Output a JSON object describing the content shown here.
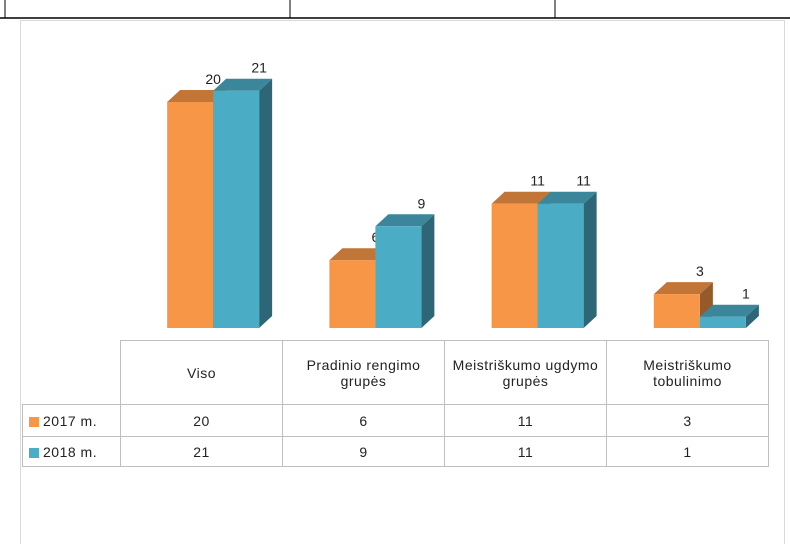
{
  "chart_data": {
    "type": "bar3d",
    "categories": [
      "Viso",
      "Pradinio rengimo grupės",
      "Meistriškumo ugdymo grupės",
      "Meistriškumo tobulinimo"
    ],
    "series": [
      {
        "name": "2017 m.",
        "color": "#f79646",
        "values": [
          20,
          6,
          11,
          3
        ]
      },
      {
        "name": "2018 m.",
        "color": "#4bacc6",
        "values": [
          21,
          9,
          11,
          1
        ]
      }
    ]
  }
}
